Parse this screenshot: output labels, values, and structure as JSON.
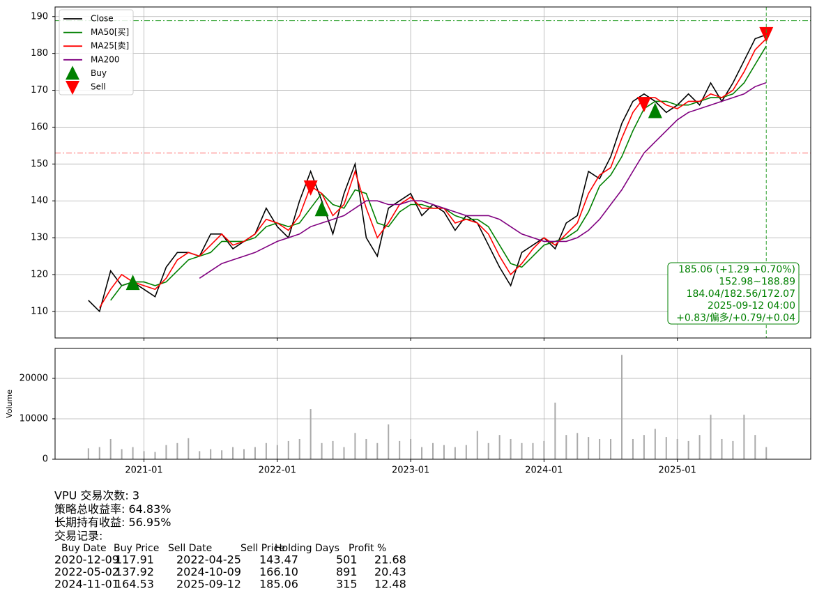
{
  "chart_data": [
    {
      "type": "line",
      "x": [
        "2020-08",
        "2020-09",
        "2020-10",
        "2020-11",
        "2020-12",
        "2021-01",
        "2021-02",
        "2021-03",
        "2021-04",
        "2021-05",
        "2021-06",
        "2021-07",
        "2021-08",
        "2021-09",
        "2021-10",
        "2021-11",
        "2021-12",
        "2022-01",
        "2022-02",
        "2022-03",
        "2022-04",
        "2022-05",
        "2022-06",
        "2022-07",
        "2022-08",
        "2022-09",
        "2022-10",
        "2022-11",
        "2022-12",
        "2023-01",
        "2023-02",
        "2023-03",
        "2023-04",
        "2023-05",
        "2023-06",
        "2023-07",
        "2023-08",
        "2023-09",
        "2023-10",
        "2023-11",
        "2023-12",
        "2024-01",
        "2024-02",
        "2024-03",
        "2024-04",
        "2024-05",
        "2024-06",
        "2024-07",
        "2024-08",
        "2024-09",
        "2024-10",
        "2024-11",
        "2024-12",
        "2025-01",
        "2025-02",
        "2025-03",
        "2025-04",
        "2025-05",
        "2025-06",
        "2025-07",
        "2025-08",
        "2025-09"
      ],
      "series": [
        {
          "name": "Close",
          "color": "#000000",
          "values": [
            113,
            110,
            121,
            117,
            118,
            116,
            114,
            122,
            126,
            126,
            125,
            131,
            131,
            127,
            129,
            131,
            138,
            133,
            130,
            140,
            148,
            140,
            131,
            142,
            150,
            130,
            125,
            138,
            140,
            142,
            136,
            139,
            137,
            132,
            136,
            134,
            128,
            122,
            117,
            126,
            128,
            130,
            127,
            134,
            136,
            148,
            146,
            152,
            161,
            167,
            169,
            167,
            164,
            166,
            169,
            166,
            172,
            167,
            172,
            178,
            184,
            185.06
          ]
        },
        {
          "name": "MA50[买]",
          "color": "#008000",
          "values": [
            null,
            null,
            113,
            117,
            118,
            118,
            117,
            118,
            121,
            124,
            125,
            126,
            129,
            129,
            129,
            130,
            133,
            134,
            133,
            134,
            138,
            142,
            139,
            138,
            143,
            142,
            134,
            133,
            137,
            139,
            139,
            138,
            138,
            136,
            135,
            135,
            133,
            128,
            123,
            122,
            125,
            128,
            129,
            130,
            132,
            137,
            144,
            147,
            152,
            159,
            165,
            167,
            167,
            166,
            166,
            167,
            168,
            168,
            169,
            172,
            177,
            182
          ]
        },
        {
          "name": "MA25[卖]",
          "color": "#ff0000",
          "values": [
            null,
            111,
            116,
            120,
            118,
            117,
            116,
            119,
            124,
            126,
            125,
            128,
            131,
            128,
            129,
            131,
            135,
            134,
            132,
            136,
            144,
            142,
            136,
            139,
            148,
            138,
            130,
            134,
            139,
            141,
            138,
            138,
            138,
            134,
            135,
            134,
            131,
            125,
            120,
            123,
            127,
            130,
            128,
            131,
            134,
            142,
            147,
            149,
            157,
            164,
            168,
            168,
            166,
            165,
            167,
            167,
            169,
            168,
            170,
            175,
            181,
            184
          ]
        },
        {
          "name": "MA200",
          "color": "#800080",
          "values": [
            null,
            null,
            null,
            null,
            null,
            null,
            null,
            null,
            null,
            null,
            119,
            121,
            123,
            124,
            125,
            126,
            127.5,
            129,
            130,
            131,
            133,
            134,
            135,
            136,
            138,
            140,
            140,
            139,
            139,
            140,
            140,
            139,
            138,
            137,
            136,
            136,
            136,
            135,
            133,
            131,
            130,
            129,
            129,
            129,
            130,
            132,
            135,
            139,
            143,
            148,
            153,
            156,
            159,
            162,
            164,
            165,
            166,
            167,
            168,
            169,
            171,
            172.07
          ]
        },
        {
          "name": "Buy",
          "type": "scatter",
          "marker": "up",
          "color": "#008000",
          "x": [
            "2020-12",
            "2022-05",
            "2024-11"
          ],
          "values": [
            117.91,
            137.92,
            164.53
          ]
        },
        {
          "name": "Sell",
          "type": "scatter",
          "marker": "down",
          "color": "#ff0000",
          "x": [
            "2022-04",
            "2024-10",
            "2025-09"
          ],
          "values": [
            143.47,
            166.1,
            185.06
          ]
        }
      ],
      "xlim": [
        "2020-05",
        "2026-01"
      ],
      "ylim": [
        102.8,
        192.6
      ],
      "yticks": [
        110,
        120,
        130,
        140,
        150,
        160,
        170,
        180,
        190
      ],
      "xticks": [
        "2021-01",
        "2022-01",
        "2023-01",
        "2024-01",
        "2025-01"
      ],
      "grid": true,
      "legend": "upper left",
      "hlines": [
        {
          "value": 188.89,
          "color": "#2ca02c"
        },
        {
          "value": 152.98,
          "color": "#ff6666"
        }
      ],
      "vline": {
        "value": "2025-09",
        "color": "#2ca02c"
      },
      "annotation": [
        "185.06 (+1.29 +0.70%)",
        "152.98~188.89",
        "184.04/182.56/172.07",
        "2025-09-12 04:00",
        "+0.83/偏多/+0.79/+0.04"
      ]
    },
    {
      "type": "bar",
      "ylabel": "Volume",
      "color": "#aaaaaa",
      "x": [
        "2020-08",
        "2020-09",
        "2020-10",
        "2020-11",
        "2020-12",
        "2021-01",
        "2021-02",
        "2021-03",
        "2021-04",
        "2021-05",
        "2021-06",
        "2021-07",
        "2021-08",
        "2021-09",
        "2021-10",
        "2021-11",
        "2021-12",
        "2022-01",
        "2022-02",
        "2022-03",
        "2022-04",
        "2022-05",
        "2022-06",
        "2022-07",
        "2022-08",
        "2022-09",
        "2022-10",
        "2022-11",
        "2022-12",
        "2023-01",
        "2023-02",
        "2023-03",
        "2023-04",
        "2023-05",
        "2023-06",
        "2023-07",
        "2023-08",
        "2023-09",
        "2023-10",
        "2023-11",
        "2023-12",
        "2024-01",
        "2024-02",
        "2024-03",
        "2024-04",
        "2024-05",
        "2024-06",
        "2024-07",
        "2024-08",
        "2024-09",
        "2024-10",
        "2024-11",
        "2024-12",
        "2025-01",
        "2025-02",
        "2025-03",
        "2025-04",
        "2025-05",
        "2025-06",
        "2025-07",
        "2025-08",
        "2025-09"
      ],
      "values": [
        2700,
        3000,
        5000,
        2500,
        3000,
        2000,
        1800,
        3500,
        4000,
        5200,
        2000,
        2500,
        2200,
        3000,
        2500,
        3000,
        4000,
        3500,
        4500,
        5000,
        12400,
        4000,
        4500,
        3000,
        6500,
        5000,
        4000,
        8600,
        4500,
        5000,
        3000,
        4000,
        3500,
        3000,
        3500,
        7000,
        4000,
        6000,
        5000,
        4000,
        4000,
        4500,
        14000,
        6000,
        6500,
        5500,
        5000,
        5000,
        25800,
        5000,
        6000,
        7500,
        5500,
        5000,
        4500,
        6000,
        11000,
        5000,
        4500,
        11000,
        6000,
        3000
      ],
      "xlim": [
        "2020-05",
        "2026-01"
      ],
      "ylim": [
        0,
        27400
      ],
      "yticks": [
        0,
        10000,
        20000
      ],
      "xticks": [
        "2021-01",
        "2022-01",
        "2023-01",
        "2024-01",
        "2025-01"
      ],
      "grid": true
    }
  ],
  "summary": [
    "VPU 交易次数: 3",
    "策略总收益率: 64.83%",
    "长期持有收益: 56.95%",
    "交易记录:"
  ],
  "trades": {
    "header": [
      "Buy Date",
      "Buy Price",
      "Sell Date",
      "Sell Price",
      "Holding Days",
      "Profit %"
    ],
    "rows": [
      [
        "2020-12-09",
        "117.91",
        "2022-04-25",
        "143.47",
        "501",
        "21.68"
      ],
      [
        "2022-05-02",
        "137.92",
        "2024-10-09",
        "166.10",
        "891",
        "20.43"
      ],
      [
        "2024-11-01",
        "164.53",
        "2025-09-12",
        "185.06",
        "315",
        "12.48"
      ]
    ]
  }
}
